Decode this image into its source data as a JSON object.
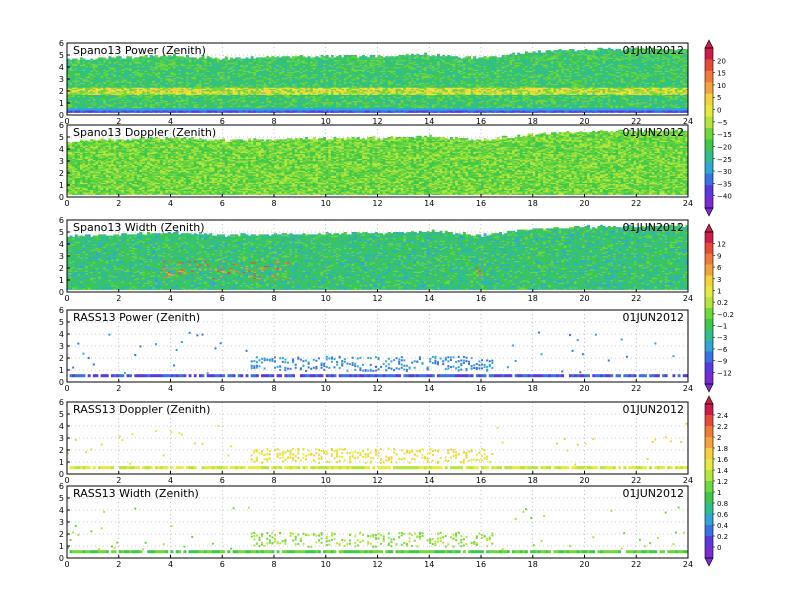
{
  "date": "01JUN2012",
  "colors": {
    "frame": "#000000",
    "grid": "#9a9a9a",
    "background": "#ffffff"
  },
  "colorbars": [
    {
      "panels": [
        0,
        1
      ],
      "tick_labels": [
        "20",
        "15",
        "10",
        "5",
        "0",
        "−5",
        "−15",
        "−20",
        "−25",
        "−30",
        "−35",
        "−40"
      ],
      "colors": [
        "#d01c4a",
        "#e84a3a",
        "#f07a3a",
        "#f4a33a",
        "#f3d23a",
        "#e6ea3a",
        "#b4e63a",
        "#6fd83a",
        "#3dc84a",
        "#2fbf8f",
        "#2fa6d6",
        "#3a72e6",
        "#5a3ae0",
        "#7a2ad6"
      ]
    },
    {
      "panels": [
        2,
        3
      ],
      "tick_labels": [
        "12",
        "9",
        "6",
        "3",
        "1",
        "0.2",
        "−0.2",
        "−1",
        "−3",
        "−6",
        "−9",
        "−12"
      ],
      "colors": [
        "#d01c4a",
        "#e84a3a",
        "#f07a3a",
        "#f4a33a",
        "#f3d23a",
        "#e6ea3a",
        "#b4e63a",
        "#6fd83a",
        "#3dc84a",
        "#2fbf8f",
        "#2fa6d6",
        "#3a72e6",
        "#5a3ae0",
        "#7a2ad6"
      ]
    },
    {
      "panels": [
        4,
        5
      ],
      "tick_labels": [
        "2.4",
        "2.2",
        "2",
        "1.8",
        "1.6",
        "1.4",
        "1.2",
        "1",
        "0.8",
        "0.6",
        "0.4",
        "0.2",
        "0"
      ],
      "colors": [
        "#d01c4a",
        "#e84a3a",
        "#f07a3a",
        "#f4a33a",
        "#f3d23a",
        "#e6ea3a",
        "#b4e63a",
        "#6fd83a",
        "#3dc84a",
        "#2fbf8f",
        "#2fa6d6",
        "#3a72e6",
        "#5a3ae0",
        "#7a2ad6"
      ]
    }
  ],
  "chart_data": [
    {
      "type": "heatmap",
      "title": "Spano13 Power (Zenith)",
      "date": "01JUN2012",
      "xlim": [
        0,
        24
      ],
      "ylim": [
        0,
        6
      ],
      "x_ticks": [
        "0",
        "2",
        "4",
        "6",
        "8",
        "10",
        "12",
        "14",
        "16",
        "18",
        "20",
        "22",
        "24"
      ],
      "y_ticks": [
        "0",
        "1",
        "2",
        "3",
        "4",
        "5",
        "6"
      ],
      "grid": true,
      "style": "profiler",
      "dominant_values": [
        -5,
        -15
      ],
      "data_top_km": [
        [
          0,
          4.6
        ],
        [
          4,
          4.9
        ],
        [
          6,
          4.7
        ],
        [
          12,
          4.9
        ],
        [
          14,
          5.0
        ],
        [
          16,
          4.7
        ],
        [
          18,
          5.2
        ],
        [
          20,
          5.4
        ],
        [
          24,
          5.5
        ]
      ],
      "notes": "high values near 2 km, low values in lowest 0.5 km"
    },
    {
      "type": "heatmap",
      "title": "Spano13 Doppler (Zenith)",
      "date": "01JUN2012",
      "xlim": [
        0,
        24
      ],
      "ylim": [
        0,
        6
      ],
      "x_ticks": [
        "0",
        "2",
        "4",
        "6",
        "8",
        "10",
        "12",
        "14",
        "16",
        "18",
        "20",
        "22",
        "24"
      ],
      "y_ticks": [
        "0",
        "1",
        "2",
        "3",
        "4",
        "5",
        "6"
      ],
      "grid": true,
      "style": "profiler",
      "dominant_values": [
        -10,
        -15
      ],
      "data_top_km": [
        [
          0,
          4.6
        ],
        [
          4,
          4.9
        ],
        [
          6,
          4.7
        ],
        [
          12,
          4.9
        ],
        [
          14,
          5.0
        ],
        [
          16,
          4.7
        ],
        [
          18,
          5.2
        ],
        [
          20,
          5.4
        ],
        [
          24,
          5.5
        ]
      ]
    },
    {
      "type": "heatmap",
      "title": "Spano13 Width (Zenith)",
      "date": "01JUN2012",
      "xlim": [
        0,
        24
      ],
      "ylim": [
        0,
        6
      ],
      "x_ticks": [
        "0",
        "2",
        "4",
        "6",
        "8",
        "10",
        "12",
        "14",
        "16",
        "18",
        "20",
        "22",
        "24"
      ],
      "y_ticks": [
        "0",
        "1",
        "2",
        "3",
        "4",
        "5",
        "6"
      ],
      "grid": true,
      "style": "profiler",
      "dominant_values": [
        -0.2,
        0.2
      ],
      "data_top_km": [
        [
          0,
          4.6
        ],
        [
          4,
          4.9
        ],
        [
          6,
          4.7
        ],
        [
          12,
          4.9
        ],
        [
          14,
          5.0
        ],
        [
          16,
          4.7
        ],
        [
          18,
          5.2
        ],
        [
          20,
          5.4
        ],
        [
          24,
          5.5
        ]
      ],
      "notes": "high-value spots near 1-2.5 km around 4-8.5 h and 16 h"
    },
    {
      "type": "heatmap",
      "title": "RASS13 Power (Zenith)",
      "date": "01JUN2012",
      "xlim": [
        0,
        24
      ],
      "ylim": [
        0,
        6
      ],
      "x_ticks": [
        "0",
        "2",
        "4",
        "6",
        "8",
        "10",
        "12",
        "14",
        "16",
        "18",
        "20",
        "22",
        "24"
      ],
      "y_ticks": [
        "0",
        "1",
        "2",
        "3",
        "4",
        "5",
        "6"
      ],
      "grid": true,
      "style": "rass",
      "dominant_values": [
        -6,
        -9
      ],
      "notes": "dense layer near 0.6 km, scattered points 1-2 km between 7 and 16 h"
    },
    {
      "type": "heatmap",
      "title": "RASS13 Doppler (Zenith)",
      "date": "01JUN2012",
      "xlim": [
        0,
        24
      ],
      "ylim": [
        0,
        6
      ],
      "x_ticks": [
        "0",
        "2",
        "4",
        "6",
        "8",
        "10",
        "12",
        "14",
        "16",
        "18",
        "20",
        "22",
        "24"
      ],
      "y_ticks": [
        "0",
        "1",
        "2",
        "3",
        "4",
        "5",
        "6"
      ],
      "grid": true,
      "style": "rass",
      "dominant_values": [
        1.2,
        1.6
      ]
    },
    {
      "type": "heatmap",
      "title": "RASS13 Width (Zenith)",
      "date": "01JUN2012",
      "xlim": [
        0,
        24
      ],
      "ylim": [
        0,
        6
      ],
      "x_ticks": [
        "0",
        "2",
        "4",
        "6",
        "8",
        "10",
        "12",
        "14",
        "16",
        "18",
        "20",
        "22",
        "24"
      ],
      "y_ticks": [
        "0",
        "1",
        "2",
        "3",
        "4",
        "5",
        "6"
      ],
      "grid": true,
      "style": "rass",
      "dominant_values": [
        0.8,
        1.2
      ]
    }
  ]
}
